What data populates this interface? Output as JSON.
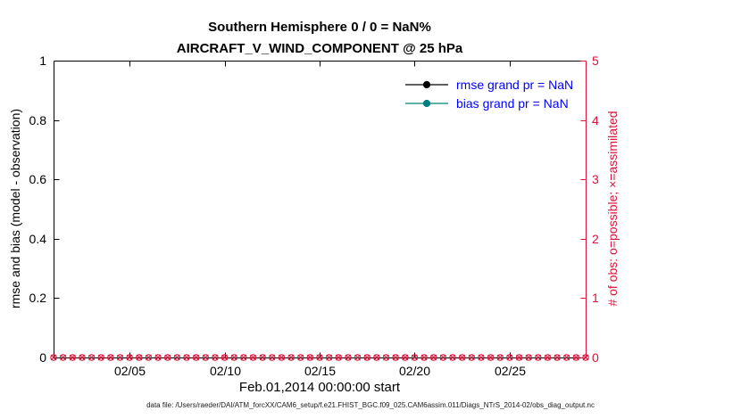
{
  "chart": {
    "title1": "Southern Hemisphere 0 / 0 = NaN%",
    "title2": "AIRCRAFT_V_WIND_COMPONENT @ 25 hPa",
    "ylabel_left": "rmse and bias (model - observation)",
    "ylabel_right": "# of obs: o=possible; ×=assimilated",
    "xlabel": "Feb.01,2014 00:00:00 start",
    "footer": "data file: /Users/raeder/DAI/ATM_forcXX/CAM6_setup/f.e21.FHIST_BGC.f09_025.CAM6assim.011/Diags_NTrS_2014-02/obs_diag_output.nc"
  },
  "chart_data": {
    "type": "line",
    "title": "Southern Hemisphere 0 / 0 = NaN%",
    "subtitle": "AIRCRAFT_V_WIND_COMPONENT @ 25 hPa",
    "grid": false,
    "legend_position": "top-right-inside",
    "legend_text_color": "#0000ff",
    "x_axis": {
      "label": "Feb.01,2014 00:00:00 start",
      "range_days": [
        0,
        28
      ],
      "tick_days": [
        4,
        9,
        14,
        19,
        24
      ],
      "tick_labels": [
        "02/05",
        "02/10",
        "02/15",
        "02/20",
        "02/25"
      ]
    },
    "y_left": {
      "label": "rmse and bias (model - observation)",
      "range": [
        0,
        1
      ],
      "ticks": [
        0,
        0.2,
        0.4,
        0.6,
        0.8,
        1
      ],
      "tick_labels": [
        "0",
        "0.2",
        "0.4",
        "0.6",
        "0.8",
        "1"
      ],
      "color": "#000000"
    },
    "y_right": {
      "label": "# of obs: o=possible; ×=assimilated",
      "range": [
        0,
        5
      ],
      "ticks": [
        0,
        1,
        2,
        3,
        4,
        5
      ],
      "tick_labels": [
        "0",
        "1",
        "2",
        "3",
        "4",
        "5"
      ],
      "color": "#dc143c"
    },
    "series": [
      {
        "name": "rmse",
        "legend": "rmse grand pr = NaN",
        "color": "#000000",
        "values": []
      },
      {
        "name": "bias",
        "legend": "bias grand pr = NaN",
        "color": "#008080",
        "values": []
      }
    ],
    "obs_counts": {
      "possible_marker": "o",
      "assimilated_marker": "x",
      "color": "#dc143c",
      "value": 0,
      "count": 57
    }
  }
}
